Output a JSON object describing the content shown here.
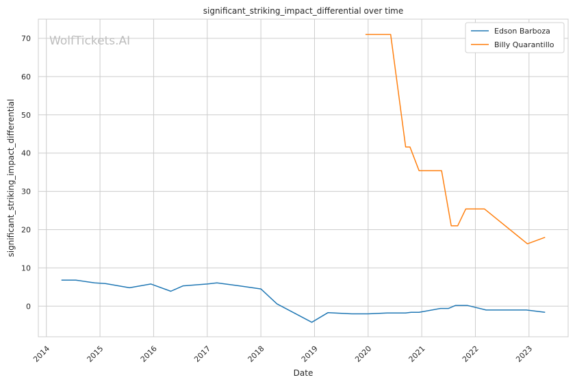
{
  "watermark": "WolfTickets.AI",
  "chart_data": {
    "type": "line",
    "title": "significant_striking_impact_differential over time",
    "xlabel": "Date",
    "ylabel": "significant_striking_impact_differential",
    "xlim": [
      2013.85,
      2023.73
    ],
    "ylim": [
      -8,
      75
    ],
    "x_ticks": [
      2014,
      2015,
      2016,
      2017,
      2018,
      2019,
      2020,
      2021,
      2022,
      2023
    ],
    "x_tick_labels": [
      "2014",
      "2015",
      "2016",
      "2017",
      "2018",
      "2019",
      "2020",
      "2021",
      "2022",
      "2023"
    ],
    "y_ticks": [
      0,
      10,
      20,
      30,
      40,
      50,
      60,
      70
    ],
    "y_tick_labels": [
      "0",
      "10",
      "20",
      "30",
      "40",
      "50",
      "60",
      "70"
    ],
    "grid": true,
    "legend_position": "top-right",
    "series": [
      {
        "name": "Edson Barboza",
        "color": "#1f77b4",
        "points": [
          [
            2014.28,
            6.8
          ],
          [
            2014.55,
            6.8
          ],
          [
            2014.9,
            6.1
          ],
          [
            2015.1,
            5.9
          ],
          [
            2015.55,
            4.8
          ],
          [
            2015.95,
            5.8
          ],
          [
            2016.32,
            3.9
          ],
          [
            2016.55,
            5.3
          ],
          [
            2017.0,
            5.8
          ],
          [
            2017.18,
            6.1
          ],
          [
            2017.6,
            5.3
          ],
          [
            2018.0,
            4.5
          ],
          [
            2018.3,
            0.6
          ],
          [
            2018.95,
            -4.2
          ],
          [
            2019.25,
            -1.7
          ],
          [
            2019.7,
            -2.0
          ],
          [
            2020.0,
            -2.0
          ],
          [
            2020.35,
            -1.8
          ],
          [
            2020.7,
            -1.8
          ],
          [
            2020.8,
            -1.6
          ],
          [
            2020.95,
            -1.6
          ],
          [
            2021.35,
            -0.6
          ],
          [
            2021.5,
            -0.6
          ],
          [
            2021.63,
            0.2
          ],
          [
            2021.85,
            0.2
          ],
          [
            2022.2,
            -1.0
          ],
          [
            2022.5,
            -1.0
          ],
          [
            2022.95,
            -1.0
          ],
          [
            2023.3,
            -1.6
          ]
        ]
      },
      {
        "name": "Billy Quarantillo",
        "color": "#ff7f0e",
        "points": [
          [
            2019.95,
            71.0
          ],
          [
            2020.42,
            71.0
          ],
          [
            2020.7,
            41.6
          ],
          [
            2020.78,
            41.6
          ],
          [
            2020.95,
            35.4
          ],
          [
            2021.37,
            35.4
          ],
          [
            2021.55,
            21.0
          ],
          [
            2021.67,
            21.0
          ],
          [
            2021.82,
            25.4
          ],
          [
            2022.17,
            25.4
          ],
          [
            2022.97,
            16.3
          ],
          [
            2023.3,
            18.0
          ]
        ]
      }
    ]
  }
}
